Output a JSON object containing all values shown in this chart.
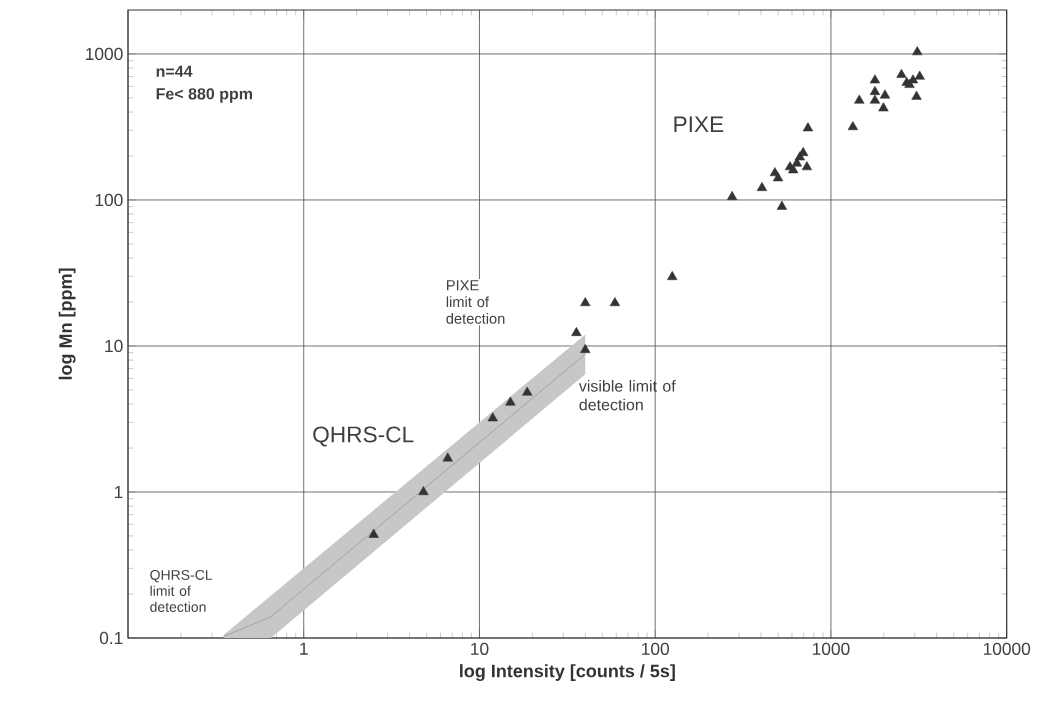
{
  "chart_data": {
    "type": "scatter",
    "xlabel": "log Intensity [counts / 5s]",
    "ylabel": "log Mn [ppm]",
    "xlim": [
      0.1,
      10000
    ],
    "ylim": [
      0.1,
      2000
    ],
    "xticks": [
      {
        "value": 0.1,
        "label": null
      },
      1,
      10,
      100,
      1000,
      10000
    ],
    "yticks": [
      0.1,
      1,
      10,
      100,
      1000
    ],
    "log": "xy",
    "grid": true,
    "marker": "triangle",
    "annotations": [
      "n=44",
      "Fe< 880 ppm",
      "PIXE",
      "PIXE limit of detection",
      "QHRS-CL",
      "visible limit of detection",
      "QHRS-CL limit of detection"
    ],
    "series": [
      {
        "type": "line",
        "marker": "none",
        "color": "#9a9a9a",
        "x": [
          0.35,
          0.65,
          40
        ],
        "values": [
          0.1025,
          0.14,
          8.8
        ],
        "lower": [
          0.1,
          0.1,
          6.4
        ],
        "upper": [
          0.105,
          0.195,
          12
        ]
      },
      {
        "color": "#333333",
        "x": [
          2.5,
          4.8,
          6.6,
          11.9,
          15,
          18.7,
          40,
          35.6,
          40,
          59,
          125,
          274,
          526,
          405,
          480,
          500,
          585,
          640,
          695,
          665,
          730,
          610,
          740,
          1333,
          1450,
          1780,
          1780,
          1780,
          2030,
          1990,
          2520,
          2700,
          2930,
          3200,
          2800,
          3070,
          3100
        ],
        "values": [
          0.51,
          1.0,
          1.7,
          3.2,
          4.1,
          4.8,
          9.4,
          12.3,
          19.7,
          19.7,
          29.7,
          105,
          90,
          121,
          153,
          141,
          168,
          178,
          210,
          196,
          168,
          160,
          310,
          316,
          480,
          660,
          550,
          480,
          520,
          425,
          720,
          635,
          660,
          700,
          615,
          510,
          1030
        ]
      }
    ]
  }
}
